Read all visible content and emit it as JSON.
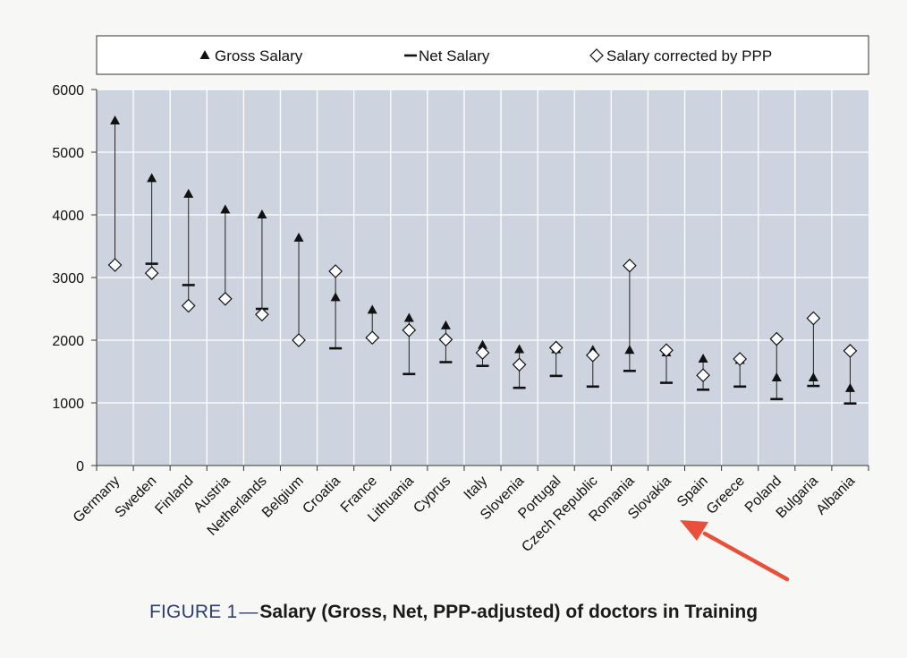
{
  "chart_data": {
    "type": "scatter",
    "categories": [
      "Germany",
      "Sweden",
      "Finland",
      "Austria",
      "Netherlands",
      "Belgium",
      "Croatia",
      "France",
      "Lithuania",
      "Cyprus",
      "Italy",
      "Slovenia",
      "Portugal",
      "Czech Republic",
      "Romania",
      "Slovakia",
      "Spain",
      "Greece",
      "Poland",
      "Bulgaria",
      "Albania"
    ],
    "series": [
      {
        "name": "Gross Salary",
        "marker": "triangle",
        "values": [
          5500,
          4580,
          4330,
          4080,
          4000,
          3630,
          2680,
          2480,
          2350,
          2230,
          1920,
          1850,
          1850,
          1840,
          1840,
          1800,
          1700,
          1680,
          1400,
          1400,
          1230
        ]
      },
      {
        "name": "Net Salary",
        "marker": "dash",
        "values": [
          null,
          3220,
          2880,
          null,
          2500,
          null,
          1870,
          2040,
          1460,
          1650,
          1590,
          1240,
          1430,
          1260,
          1510,
          1320,
          1210,
          1260,
          1060,
          1270,
          990
        ]
      },
      {
        "name": "Salary corrected by PPP",
        "marker": "diamond",
        "values": [
          3200,
          3070,
          2550,
          2660,
          2410,
          2000,
          3100,
          2040,
          2160,
          2010,
          1800,
          1610,
          1880,
          1760,
          3190,
          1840,
          1440,
          1700,
          2020,
          2350,
          1830
        ]
      }
    ],
    "ylim": [
      0,
      6000
    ],
    "yticks": [
      0,
      1000,
      2000,
      3000,
      4000,
      5000,
      6000
    ],
    "grid": true,
    "legend_position": "top",
    "colors": {
      "plot_bg": "#cdd4df",
      "grid": "#ffffff",
      "marker": "#111111",
      "arrow": "#e8503a",
      "caption_prefix": "#2f3f6e"
    },
    "annotation": "red-arrow-pointing-to-Slovakia"
  },
  "caption": {
    "prefix": "FIGURE 1",
    "dash": "—",
    "title": "Salary (Gross, Net, PPP-adjusted) of doctors in Training"
  }
}
